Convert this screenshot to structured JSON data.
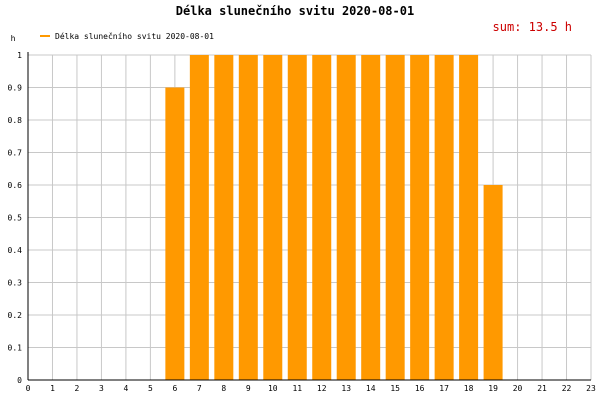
{
  "chart_data": {
    "type": "bar",
    "title": "Délka slunečního svitu 2020-08-01",
    "ylabel": "h",
    "xlabel": "",
    "x": [
      0,
      1,
      2,
      3,
      4,
      5,
      6,
      7,
      8,
      9,
      10,
      11,
      12,
      13,
      14,
      15,
      16,
      17,
      18,
      19,
      20,
      21,
      22,
      23
    ],
    "series": [
      {
        "name": "Délka slunečního svitu 2020-08-01",
        "values": [
          0,
          0,
          0,
          0,
          0,
          0,
          0.9,
          1,
          1,
          1,
          1,
          1,
          1,
          1,
          1,
          1,
          1,
          1,
          1,
          0.6,
          0,
          0,
          0,
          0
        ]
      }
    ],
    "ylim": [
      0,
      1
    ],
    "yticks": [
      0,
      0.1,
      0.2,
      0.3,
      0.4,
      0.5,
      0.6,
      0.7,
      0.8,
      0.9,
      1
    ],
    "grid": true,
    "legend_position": "top-left",
    "summary": "sum: 13.5 h",
    "colors": {
      "bar": "#ff9900",
      "grid": "#c8c8c8",
      "axis": "#000000",
      "summary": "#cc0000"
    }
  }
}
